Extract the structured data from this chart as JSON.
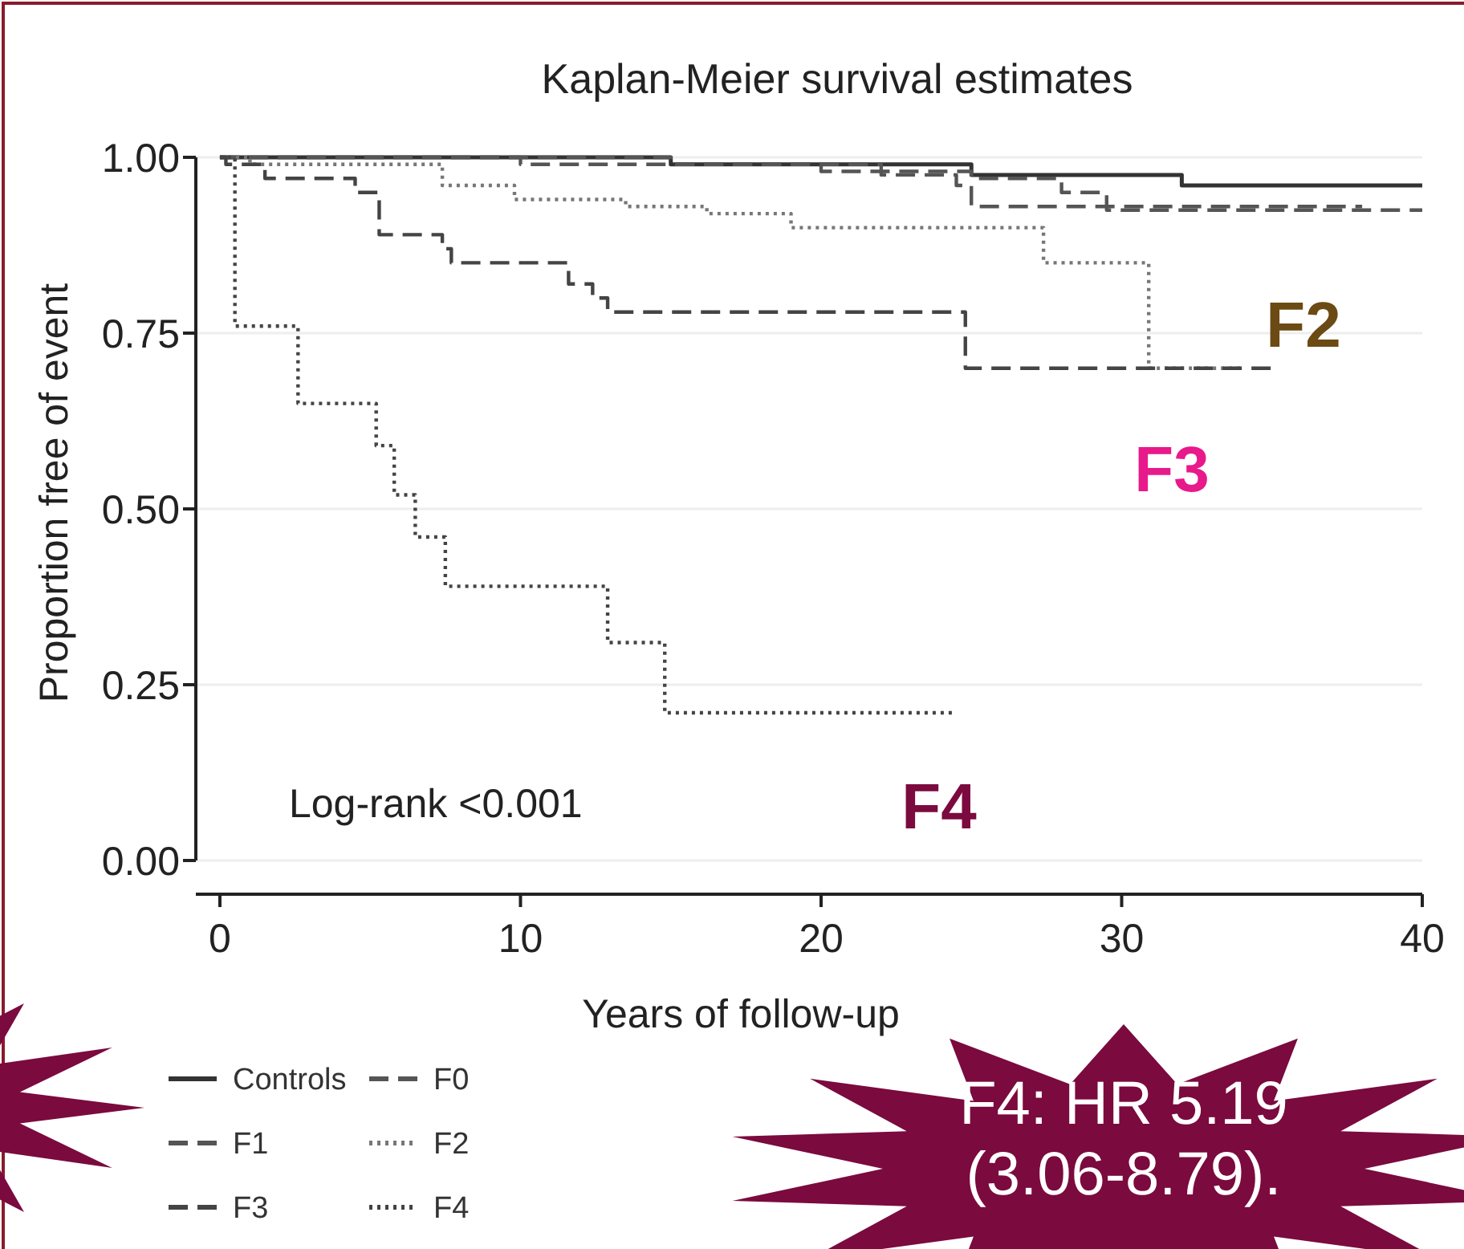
{
  "chart_data": {
    "type": "step",
    "title": "Kaplan-Meier survival estimates",
    "xlabel": "Years of follow-up",
    "ylabel": "Proportion free of event",
    "xlim": [
      -0.8,
      40
    ],
    "xticks": [
      0,
      10,
      20,
      30,
      40
    ],
    "ylim": [
      0,
      1
    ],
    "yticks": [
      {
        "value": 0,
        "label": "0.00"
      },
      {
        "value": 0.25,
        "label": "0.25"
      },
      {
        "value": 0.5,
        "label": "0.50"
      },
      {
        "value": 0.75,
        "label": "0.75"
      },
      {
        "value": 1,
        "label": "1.00"
      }
    ],
    "grid": "y",
    "legend": "bottom",
    "series": [
      {
        "name": "Controls",
        "color": "#333333",
        "line_style": "solid",
        "x": [
          0,
          15,
          25,
          32,
          40
        ],
        "values": [
          1,
          0.99,
          0.975,
          0.96,
          0.96
        ]
      },
      {
        "name": "F0",
        "color": "#555555",
        "line_style": "dashed",
        "x": [
          0,
          10,
          20,
          25,
          28,
          29.5,
          40
        ],
        "values": [
          1,
          0.99,
          0.98,
          0.97,
          0.95,
          0.925,
          0.925
        ]
      },
      {
        "name": "F1",
        "color": "#555555",
        "line_style": "dashed",
        "x": [
          0,
          15,
          22,
          24.5,
          25,
          38
        ],
        "values": [
          1,
          0.99,
          0.975,
          0.96,
          0.93,
          0.93
        ]
      },
      {
        "name": "F2",
        "color": "#777777",
        "line_style": "dotted",
        "x": [
          0,
          1,
          7.4,
          9.8,
          13.5,
          16.2,
          19,
          27.4,
          30.9,
          34
        ],
        "values": [
          1,
          0.99,
          0.96,
          0.94,
          0.93,
          0.92,
          0.9,
          0.85,
          0.7,
          0.7
        ]
      },
      {
        "name": "F3",
        "color": "#444444",
        "line_style": "dashed",
        "x": [
          0,
          0.2,
          1.5,
          4.5,
          5.3,
          7.4,
          7.7,
          11.6,
          12.4,
          12.9,
          24.8,
          35
        ],
        "values": [
          1,
          0.99,
          0.97,
          0.95,
          0.89,
          0.87,
          0.85,
          0.82,
          0.8,
          0.78,
          0.7,
          0.7
        ]
      },
      {
        "name": "F4",
        "color": "#444444",
        "line_style": "dotted",
        "x": [
          0,
          0.5,
          2.6,
          5.2,
          5.8,
          6.5,
          7.5,
          12.9,
          14.8,
          24.4
        ],
        "values": [
          1,
          0.76,
          0.65,
          0.59,
          0.52,
          0.46,
          0.39,
          0.31,
          0.21,
          0.21
        ]
      }
    ],
    "annotations": [
      "Log-rank <0.001",
      "F2",
      "F3",
      "F4",
      "F4: HR 5.19 (3.06-8.79)."
    ]
  }
}
